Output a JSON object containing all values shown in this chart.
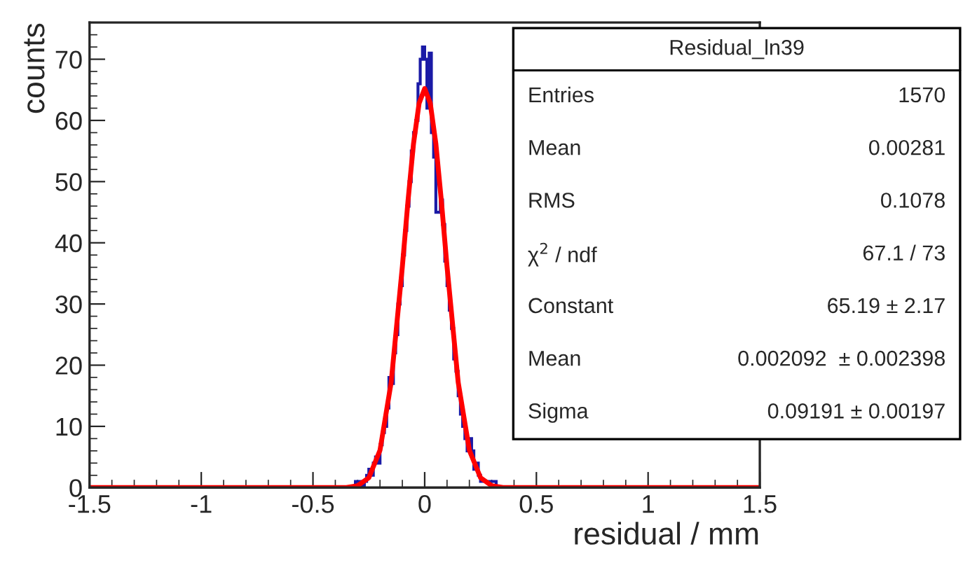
{
  "chart_data": {
    "type": "histogram",
    "title": "Residual_ln39",
    "xlabel": "residual / mm",
    "ylabel": "counts",
    "bins": [
      -1.5,
      -0.35,
      -0.34,
      -0.33,
      -0.32,
      -0.31,
      -0.3,
      -0.29,
      -0.28,
      -0.27,
      -0.26,
      -0.25,
      -0.24,
      -0.23,
      -0.22,
      -0.21,
      -0.2,
      -0.19,
      -0.18,
      -0.17,
      -0.16,
      -0.15,
      -0.14,
      -0.13,
      -0.12,
      -0.11,
      -0.1,
      -0.09,
      -0.08,
      -0.07,
      -0.06,
      -0.05,
      -0.04,
      -0.03,
      -0.02,
      -0.01,
      0,
      0.01,
      0.02,
      0.03,
      0.04,
      0.05,
      0.06,
      0.07,
      0.08,
      0.09,
      0.1,
      0.11,
      0.12,
      0.13,
      0.14,
      0.15,
      0.16,
      0.17,
      0.18,
      0.19,
      0.2,
      0.21,
      0.22,
      0.23,
      0.24,
      0.25,
      0.26,
      0.27,
      0.28,
      0.29,
      0.3,
      0.31,
      0.32,
      0.33,
      0.34,
      0.35,
      1.5
    ],
    "values": [
      0,
      0,
      0,
      0,
      0,
      1,
      1,
      1,
      0,
      1,
      2,
      3,
      2,
      4,
      5,
      4,
      7,
      9,
      10,
      13,
      18,
      17,
      22,
      25,
      30,
      33,
      38,
      42,
      46,
      50,
      55,
      58,
      60,
      66,
      70,
      72,
      70,
      62,
      71,
      58,
      54,
      45,
      45,
      47,
      43,
      37,
      33,
      29,
      26,
      21,
      19,
      15,
      12,
      10,
      8,
      6,
      8,
      6,
      3,
      4,
      2,
      1,
      1,
      1,
      1,
      1,
      1,
      1,
      0,
      0,
      0,
      0
    ],
    "color": "#1a1aa6",
    "series": [
      {
        "type": "line",
        "color": "#ff0000",
        "x": [
          -1.5,
          -0.4,
          -0.35,
          -0.3,
          -0.25,
          -0.2,
          -0.15,
          -0.1,
          -0.075,
          -0.05,
          -0.025,
          0,
          0.025,
          0.05,
          0.075,
          0.1,
          0.15,
          0.2,
          0.25,
          0.3,
          0.35,
          0.4,
          1.5
        ],
        "values": [
          0,
          0,
          0,
          0.3,
          1.6,
          6.1,
          17.2,
          36.1,
          46.7,
          56.2,
          62.8,
          65.2,
          62.8,
          56.2,
          46.7,
          36.1,
          17.2,
          6.1,
          1.6,
          0.3,
          0,
          0,
          0
        ]
      }
    ],
    "xlim": [
      -1.5,
      1.5
    ],
    "xticks": [
      -1.5,
      -1,
      -0.5,
      0,
      0.5,
      1,
      1.5
    ],
    "ylim": [
      0,
      76
    ],
    "yticks": [
      0,
      10,
      20,
      30,
      40,
      50,
      60,
      70
    ],
    "grid": false,
    "legend": false,
    "annotations": [
      "Entries",
      "1570",
      "Mean",
      "0.00281",
      "RMS",
      "0.1078",
      "χ$^{2}$ / ndf",
      "67.1 / 73",
      "Constant",
      "65.19 ± 2.17",
      "Mean",
      "0.002092  ± 0.002398",
      "Sigma",
      "0.09191 ± 0.00197"
    ]
  }
}
